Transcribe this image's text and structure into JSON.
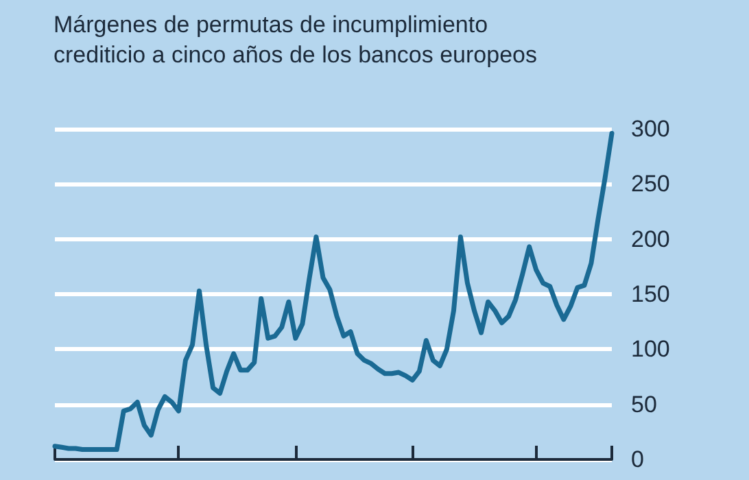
{
  "chart_data": {
    "type": "line",
    "title": "Márgenes de permutas de incumplimiento crediticio a cinco años de los bancos europeos",
    "categories": [
      null,
      null,
      null,
      null,
      null,
      null,
      null,
      null,
      null,
      null,
      null,
      null,
      null,
      null,
      null,
      null,
      null,
      null,
      null,
      null,
      null,
      null,
      null,
      null,
      null,
      null,
      null,
      null,
      null,
      null,
      null,
      null,
      null,
      null,
      null,
      null,
      null,
      null,
      null,
      null,
      null,
      null,
      null,
      null,
      null,
      null,
      null,
      null,
      null,
      null,
      null,
      null,
      null,
      null,
      null,
      null,
      null,
      null,
      null,
      null,
      null,
      null,
      null,
      null,
      null,
      null,
      null,
      null,
      null,
      null,
      null,
      null,
      null,
      null,
      null,
      null,
      null,
      null,
      null,
      null,
      null,
      null
    ],
    "series": [
      {
        "color": "#1a6a94",
        "values": [
          12,
          11,
          10,
          10,
          9,
          9,
          9,
          9,
          9,
          9,
          44,
          46,
          52,
          31,
          22,
          45,
          57,
          52,
          44,
          90,
          104,
          153,
          104,
          65,
          60,
          80,
          96,
          81,
          81,
          88,
          146,
          110,
          112,
          120,
          143,
          110,
          123,
          164,
          202,
          165,
          154,
          130,
          112,
          116,
          96,
          90,
          87,
          82,
          78,
          78,
          79,
          76,
          72,
          80,
          108,
          90,
          85,
          100,
          135,
          202,
          160,
          135,
          115,
          143,
          135,
          124,
          130,
          145,
          168,
          193,
          172,
          160,
          157,
          140,
          127,
          139,
          156,
          158,
          178,
          218,
          255,
          296
        ]
      }
    ],
    "ylim": [
      0,
      300
    ],
    "yticks": [
      0,
      50,
      100,
      150,
      200,
      250,
      300
    ],
    "grid": "y",
    "tick_labels": "y",
    "line_style": "solid"
  }
}
